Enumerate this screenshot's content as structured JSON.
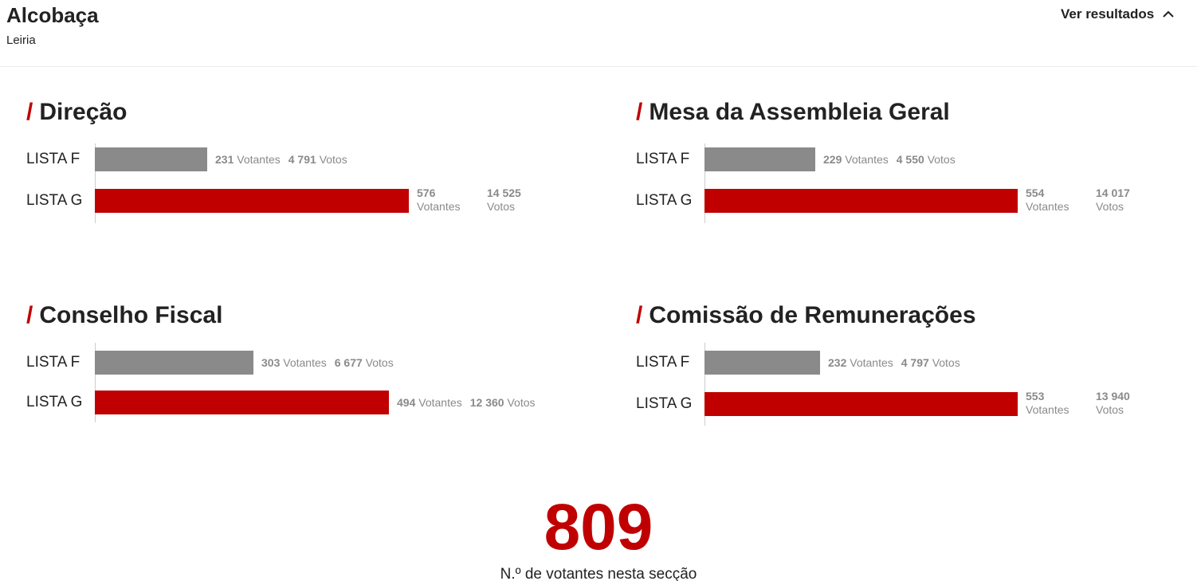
{
  "header": {
    "title": "Alcobaça",
    "subtitle": "Leiria",
    "toggle_label": "Ver resultados",
    "toggle_icon": "chevron-up-icon"
  },
  "colors": {
    "accent": "#c00000",
    "bar_gray": "#8a8a8a",
    "stat_text": "#8a8a8a"
  },
  "sections": [
    {
      "slash": "/",
      "title": "Direção",
      "lists": [
        {
          "label": "LISTA F",
          "votantes": "231",
          "votantes_label": "Votantes",
          "votos": "4 791",
          "votos_label": "Votos"
        },
        {
          "label": "LISTA G",
          "votantes": "576",
          "votantes_label": "Votantes",
          "votos": "14 525",
          "votos_label": "Votos"
        }
      ]
    },
    {
      "slash": "/",
      "title": "Mesa da Assembleia Geral",
      "lists": [
        {
          "label": "LISTA F",
          "votantes": "229",
          "votantes_label": "Votantes",
          "votos": "4 550",
          "votos_label": "Votos"
        },
        {
          "label": "LISTA G",
          "votantes": "554",
          "votantes_label": "Votantes",
          "votos": "14 017",
          "votos_label": "Votos"
        }
      ]
    },
    {
      "slash": "/",
      "title": "Conselho Fiscal",
      "lists": [
        {
          "label": "LISTA F",
          "votantes": "303",
          "votantes_label": "Votantes",
          "votos": "6 677",
          "votos_label": "Votos"
        },
        {
          "label": "LISTA G",
          "votantes": "494",
          "votantes_label": "Votantes",
          "votos": "12 360",
          "votos_label": "Votos"
        }
      ]
    },
    {
      "slash": "/",
      "title": "Comissão de Remunerações",
      "lists": [
        {
          "label": "LISTA F",
          "votantes": "232",
          "votantes_label": "Votantes",
          "votos": "4 797",
          "votos_label": "Votos"
        },
        {
          "label": "LISTA G",
          "votantes": "553",
          "votantes_label": "Votantes",
          "votos": "13 940",
          "votos_label": "Votos"
        }
      ]
    }
  ],
  "total": {
    "value": "809",
    "caption": "N.º de votantes nesta secção"
  }
}
